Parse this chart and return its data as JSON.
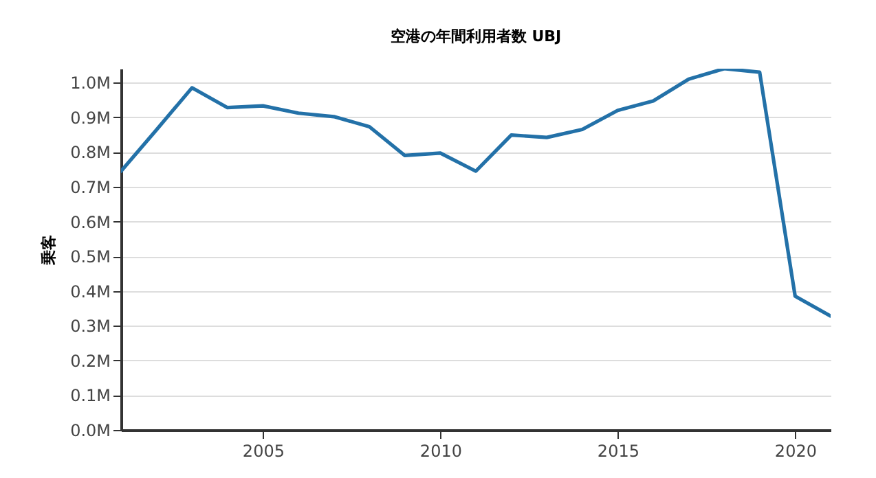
{
  "chart_data": {
    "type": "line",
    "title": "空港の年間利用者数 UBJ",
    "ylabel": "乗客",
    "x": [
      2001,
      2002,
      2003,
      2004,
      2005,
      2006,
      2007,
      2008,
      2009,
      2010,
      2011,
      2012,
      2013,
      2014,
      2015,
      2016,
      2017,
      2018,
      2019,
      2020,
      2021
    ],
    "series": [
      {
        "color": "#2371a8",
        "values": [
          0.745,
          0.864,
          0.985,
          0.928,
          0.933,
          0.912,
          0.902,
          0.873,
          0.79,
          0.797,
          0.745,
          0.849,
          0.842,
          0.865,
          0.92,
          0.947,
          1.01,
          1.04,
          1.03,
          0.385,
          0.328
        ]
      }
    ],
    "xlim": [
      2001,
      2021
    ],
    "xticks": [
      2005,
      2010,
      2015,
      2020
    ],
    "ylim": [
      0,
      1.04
    ],
    "yticks": [
      {
        "value": 0,
        "label": "0.0M"
      },
      {
        "value": 0.1,
        "label": "0.1M"
      },
      {
        "value": 0.2,
        "label": "0.2M"
      },
      {
        "value": 0.3,
        "label": "0.3M"
      },
      {
        "value": 0.4,
        "label": "0.4M"
      },
      {
        "value": 0.5,
        "label": "0.5M"
      },
      {
        "value": 0.6,
        "label": "0.6M"
      },
      {
        "value": 0.7,
        "label": "0.7M"
      },
      {
        "value": 0.8,
        "label": "0.8M"
      },
      {
        "value": 0.9,
        "label": "0.9M"
      },
      {
        "value": 1.0,
        "label": "1.0M"
      }
    ],
    "grid": "y",
    "legend": false,
    "marker": "none",
    "line_style": "solid"
  }
}
